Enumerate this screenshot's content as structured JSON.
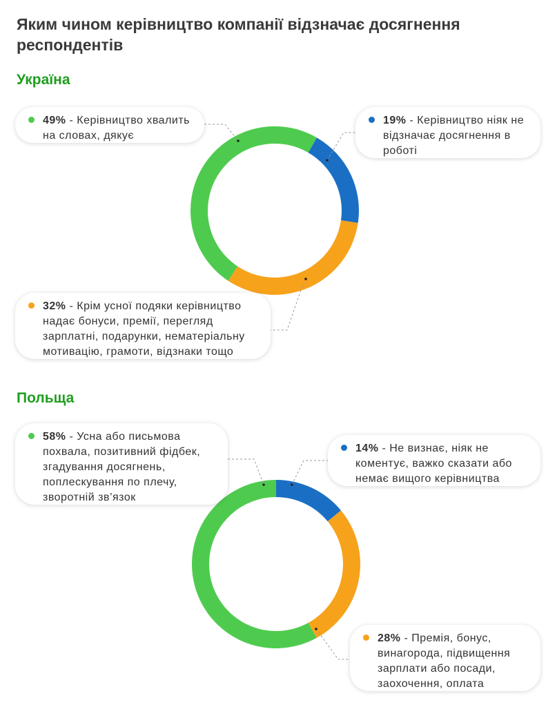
{
  "title": "Яким чином керівництво компанії відзначає досягнення респондентів",
  "colors": {
    "green": "#4ecb4e",
    "blue": "#1a6fc4",
    "orange": "#f7a21b",
    "section": "#1f9e1f"
  },
  "chart_data": [
    {
      "type": "pie",
      "title": "Україна",
      "series": [
        {
          "name": "Керівництво ніяк не відзначає досягнення в роботі",
          "label": "19%",
          "value": 19,
          "color": "#1a6fc4"
        },
        {
          "name": "Крім усної подяки керівництво надає бонуси, премії, перегляд зарплатні, подарунки, нематеріальну мотивацію, грамоти, відзнаки тощо",
          "label": "32%",
          "value": 32,
          "color": "#f7a21b"
        },
        {
          "name": "Керівництво хвалить на словах, дякує",
          "label": "49%",
          "value": 49,
          "color": "#4ecb4e"
        }
      ]
    },
    {
      "type": "pie",
      "title": "Польща",
      "series": [
        {
          "name": "Не визнає, ніяк не коментує, важко сказати або немає вищого керівництва",
          "label": "14%",
          "value": 14,
          "color": "#1a6fc4"
        },
        {
          "name": "Премія, бонус, винагорода, підвищення зарплати або посади, заохочення, оплата",
          "label": "28%",
          "value": 28,
          "color": "#f7a21b"
        },
        {
          "name": "Усна або письмова похвала, позитивний фідбек, згадування досягнень, поплескування по плечу, зворотній зв’язок",
          "label": "58%",
          "value": 58,
          "color": "#4ecb4e"
        }
      ]
    }
  ]
}
